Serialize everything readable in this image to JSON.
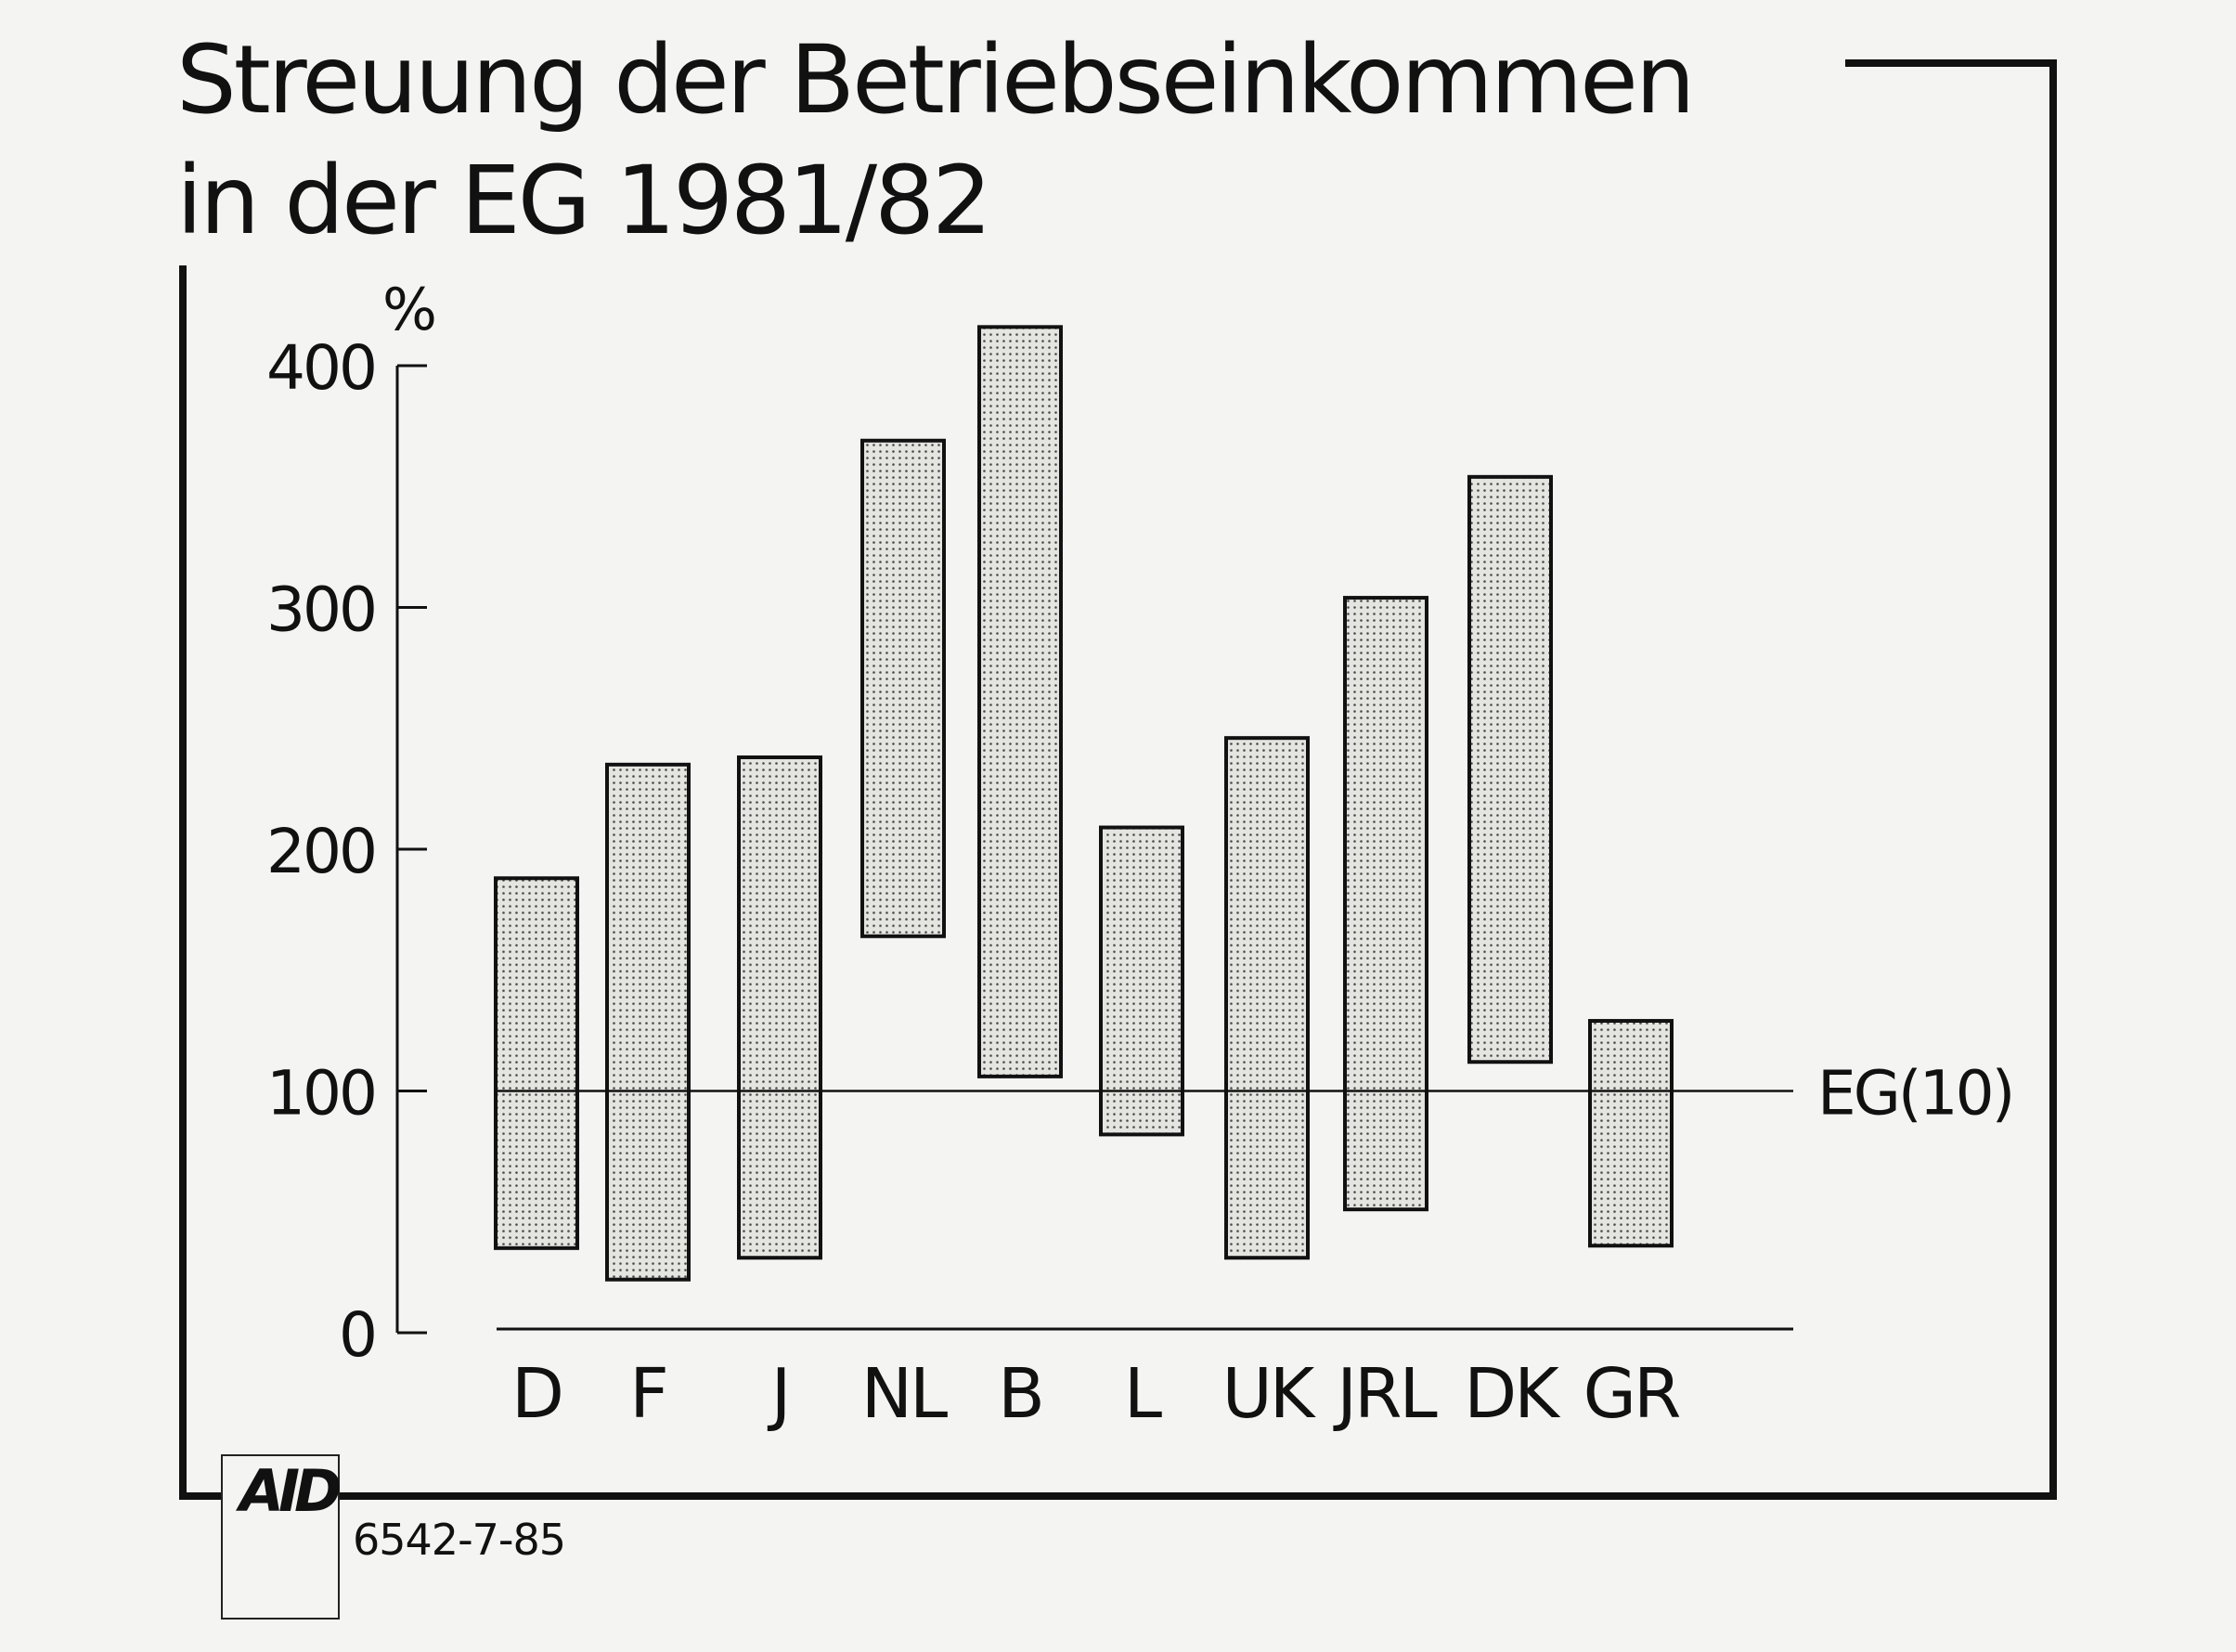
{
  "chart_data": {
    "type": "floating-bar",
    "title": [
      "Streuung der Betriebseinkommen",
      "in der EG 1981/82"
    ],
    "ylabel": "%",
    "ylim": [
      0,
      400
    ],
    "yticks": [
      "0",
      "100",
      "200",
      "300",
      "400"
    ],
    "categories": [
      "D",
      "F",
      "J",
      "NL",
      "B",
      "L",
      "UK",
      "JRL",
      "DK",
      "GR"
    ],
    "ranges": [
      [
        35,
        188
      ],
      [
        22,
        235
      ],
      [
        31,
        238
      ],
      [
        164,
        369
      ],
      [
        106,
        416
      ],
      [
        82,
        209
      ],
      [
        31,
        246
      ],
      [
        51,
        304
      ],
      [
        112,
        354
      ],
      [
        36,
        129
      ]
    ],
    "reference_line": {
      "value": 100,
      "label": "EG(10)"
    },
    "grid": false
  },
  "footer": {
    "logo": "AID",
    "code": "6542-7-85"
  },
  "colors": {
    "ink": "#111111",
    "paper": "#f4f4f2",
    "bar_fill": "#d6d6d2"
  }
}
